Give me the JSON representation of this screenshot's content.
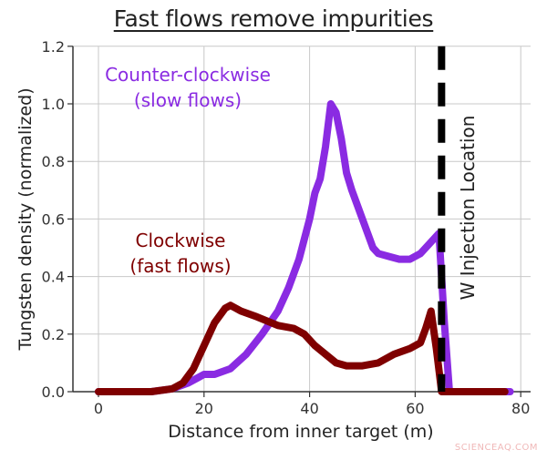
{
  "chart_data": {
    "type": "line",
    "title": "Fast flows remove impurities",
    "xlabel": "Distance from inner target (m)",
    "ylabel": "Tungsten density (normalized)",
    "xlim": [
      -5,
      82
    ],
    "ylim": [
      0.0,
      1.2
    ],
    "xticks": [
      0,
      20,
      40,
      60,
      80
    ],
    "yticks": [
      0.0,
      0.2,
      0.4,
      0.6,
      0.8,
      1.0,
      1.2
    ],
    "ytick_labels": [
      "0.0",
      "0.2",
      "0.4",
      "0.6",
      "0.8",
      "1.0",
      "1.2"
    ],
    "grid": true,
    "series": [
      {
        "name": "Counter-clockwise (slow flows)",
        "color": "#8a2be2",
        "x": [
          0,
          5,
          10,
          14,
          17,
          19,
          20,
          22,
          25,
          28,
          31,
          34,
          36,
          38,
          40,
          41,
          42,
          43,
          44,
          45,
          46,
          47,
          48,
          50,
          52,
          53,
          55,
          57,
          59,
          61,
          63,
          64.5,
          65.5,
          66.5,
          70,
          78
        ],
        "y": [
          0.0,
          0.0,
          0.0,
          0.01,
          0.03,
          0.05,
          0.06,
          0.06,
          0.08,
          0.13,
          0.2,
          0.28,
          0.36,
          0.46,
          0.6,
          0.69,
          0.74,
          0.85,
          1.0,
          0.97,
          0.88,
          0.76,
          0.7,
          0.6,
          0.5,
          0.48,
          0.47,
          0.46,
          0.46,
          0.48,
          0.52,
          0.55,
          0.25,
          0.0,
          0.0,
          0.0
        ]
      },
      {
        "name": "Clockwise (fast flows)",
        "color": "#7f0000",
        "x": [
          0,
          5,
          10,
          14,
          16,
          18,
          20,
          22,
          24,
          25,
          27,
          30,
          34,
          37,
          39,
          41,
          43,
          45,
          47,
          50,
          53,
          56,
          59,
          61,
          62,
          63,
          64,
          65,
          66,
          70,
          77
        ],
        "y": [
          0.0,
          0.0,
          0.0,
          0.01,
          0.03,
          0.08,
          0.16,
          0.24,
          0.29,
          0.3,
          0.28,
          0.26,
          0.23,
          0.22,
          0.2,
          0.16,
          0.13,
          0.1,
          0.09,
          0.09,
          0.1,
          0.13,
          0.15,
          0.17,
          0.22,
          0.28,
          0.15,
          0.0,
          0.0,
          0.0,
          0.0
        ]
      }
    ],
    "vertical_line": {
      "x": 65,
      "style": "dashed",
      "color": "#000000",
      "label": "W Injection Location"
    },
    "annotations": [
      {
        "text": [
          "Counter-clockwise",
          "(slow flows)"
        ],
        "color": "#8a2be2"
      },
      {
        "text": [
          "Clockwise",
          "(fast flows)"
        ],
        "color": "#7f0000"
      }
    ],
    "legend": "inline annotations"
  },
  "watermark": "SCIENCEAQ.COM"
}
